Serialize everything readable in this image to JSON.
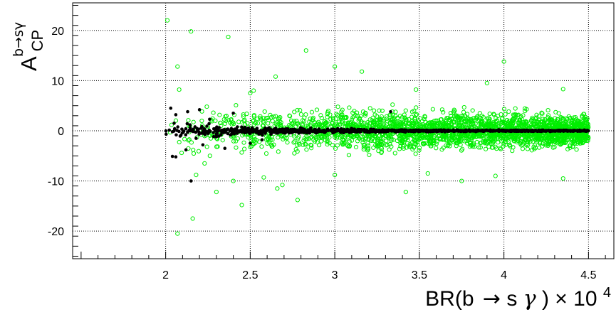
{
  "chart_data": {
    "type": "scatter",
    "xlabel": {
      "prefix": "BR(b",
      "arrow": "→",
      "middle": " s ",
      "gamma": "γ",
      "suffix": ") × 10",
      "exp": "4"
    },
    "ylabel": {
      "base": "A",
      "sub": "CP",
      "sup": "b→sγ"
    },
    "xlim": [
      1.45,
      4.65
    ],
    "ylim": [
      -25.5,
      25.5
    ],
    "x_ticks": [
      2,
      2.5,
      3,
      3.5,
      4,
      4.5
    ],
    "x_tick_labels": [
      "2",
      "2.5",
      "3",
      "3.5",
      "4",
      "4.5"
    ],
    "y_ticks": [
      -20,
      -10,
      0,
      10,
      20
    ],
    "y_tick_labels": [
      "-20",
      "-10",
      "0",
      "10",
      "20"
    ],
    "grid": true,
    "series": [
      {
        "marker": "open-circle",
        "color": "#00ee00",
        "x_range": [
          2.0,
          4.5
        ],
        "outliers": [
          [
            2.01,
            22.0
          ],
          [
            2.15,
            19.8
          ],
          [
            2.37,
            18.7
          ],
          [
            2.07,
            12.8
          ],
          [
            2.08,
            8.2
          ],
          [
            2.52,
            8.0
          ],
          [
            2.65,
            10.8
          ],
          [
            2.83,
            16.0
          ],
          [
            3.0,
            12.8
          ],
          [
            3.16,
            11.8
          ],
          [
            4.0,
            13.8
          ],
          [
            4.35,
            8.3
          ],
          [
            2.5,
            7.5
          ],
          [
            3.48,
            8.2
          ],
          [
            3.9,
            9.5
          ],
          [
            2.07,
            -20.5
          ],
          [
            2.16,
            -17.5
          ],
          [
            2.45,
            -14.8
          ],
          [
            2.78,
            -13.8
          ],
          [
            2.3,
            -12.2
          ],
          [
            2.66,
            -11.5
          ],
          [
            3.42,
            -12.2
          ],
          [
            2.4,
            -10.0
          ],
          [
            4.35,
            -9.5
          ],
          [
            3.95,
            -9.0
          ],
          [
            3.75,
            -10.0
          ],
          [
            2.58,
            -9.3
          ],
          [
            2.69,
            -10.8
          ],
          [
            3.0,
            -8.8
          ],
          [
            3.55,
            -8.5
          ],
          [
            2.23,
            -6.5
          ],
          [
            2.18,
            -8.8
          ]
        ]
      },
      {
        "marker": "filled-circle",
        "color": "#000000",
        "x_range": [
          2.0,
          4.5
        ],
        "outliers": [
          [
            2.03,
            4.5
          ],
          [
            2.06,
            3.2
          ],
          [
            2.13,
            3.8
          ],
          [
            2.2,
            4.2
          ],
          [
            2.4,
            3.5
          ],
          [
            2.06,
            -5.2
          ],
          [
            2.04,
            -5.1
          ],
          [
            2.15,
            -10.0
          ],
          [
            2.35,
            -3.5
          ],
          [
            2.12,
            -3.8
          ],
          [
            2.22,
            -2.8
          ],
          [
            2.5,
            -2.5
          ],
          [
            2.57,
            -1.8
          ],
          [
            3.33,
            3.8
          ],
          [
            2.05,
            1.5
          ],
          [
            2.09,
            -0.9
          ],
          [
            2.18,
            -1.5
          ],
          [
            2.26,
            2.3
          ],
          [
            2.3,
            -1.2
          ]
        ]
      }
    ]
  }
}
